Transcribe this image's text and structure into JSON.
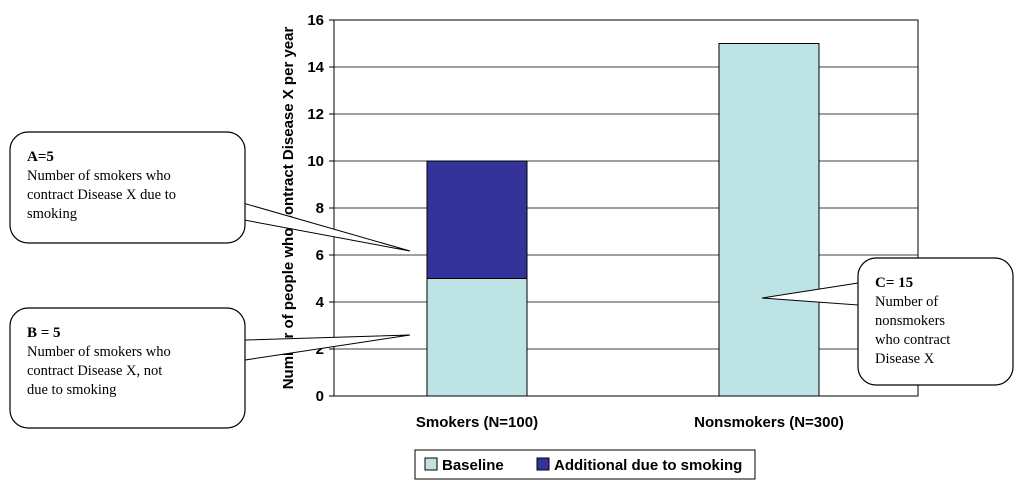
{
  "chart_data": {
    "type": "bar",
    "stacked": true,
    "categories": [
      "Smokers (N=100)",
      "Nonsmokers (N=300)"
    ],
    "series": [
      {
        "name": "Baseline",
        "values": [
          5,
          15
        ],
        "color": "#bde3e4"
      },
      {
        "name": "Additional due to smoking",
        "values": [
          5,
          0
        ],
        "color": "#333399"
      }
    ],
    "ylabel": "Number of people who contract Disease X per year",
    "ylim": [
      0,
      16
    ],
    "yticks": [
      "0",
      "2",
      "4",
      "6",
      "8",
      "10",
      "12",
      "14",
      "16"
    ],
    "grid": true,
    "legend_position": "bottom",
    "plot_background": "#ffffff",
    "grid_color": "#000000"
  },
  "callouts": [
    {
      "id": "a",
      "title": "A=5",
      "lines": [
        "Number of smokers who",
        "contract Disease X due to",
        "smoking"
      ]
    },
    {
      "id": "b",
      "title": "B = 5",
      "lines": [
        "Number of smokers who",
        "contract Disease X, not",
        "due to smoking"
      ]
    },
    {
      "id": "c",
      "title": "C= 15",
      "lines": [
        "Number of",
        "nonsmokers",
        "who contract",
        "Disease X"
      ]
    }
  ]
}
